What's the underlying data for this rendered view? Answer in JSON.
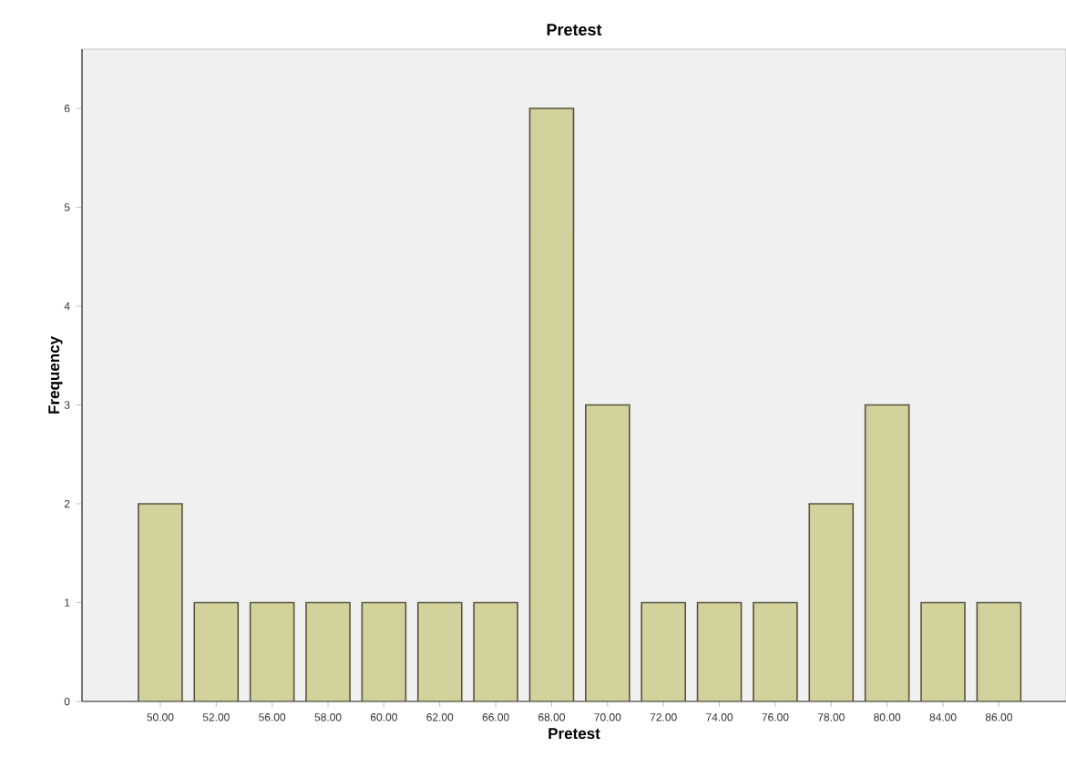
{
  "chart_data": {
    "type": "bar",
    "title": "Pretest",
    "xlabel": "Pretest",
    "ylabel": "Frequency",
    "categories": [
      "50.00",
      "52.00",
      "56.00",
      "58.00",
      "60.00",
      "62.00",
      "66.00",
      "68.00",
      "70.00",
      "72.00",
      "74.00",
      "76.00",
      "78.00",
      "80.00",
      "84.00",
      "86.00"
    ],
    "values": [
      2,
      1,
      1,
      1,
      1,
      1,
      1,
      6,
      3,
      1,
      1,
      1,
      2,
      3,
      1,
      1
    ],
    "color": "#d4d29c",
    "ylim": [
      0,
      6.6
    ],
    "yticks": [
      0,
      1,
      2,
      3,
      4,
      5,
      6
    ],
    "grid": false
  }
}
